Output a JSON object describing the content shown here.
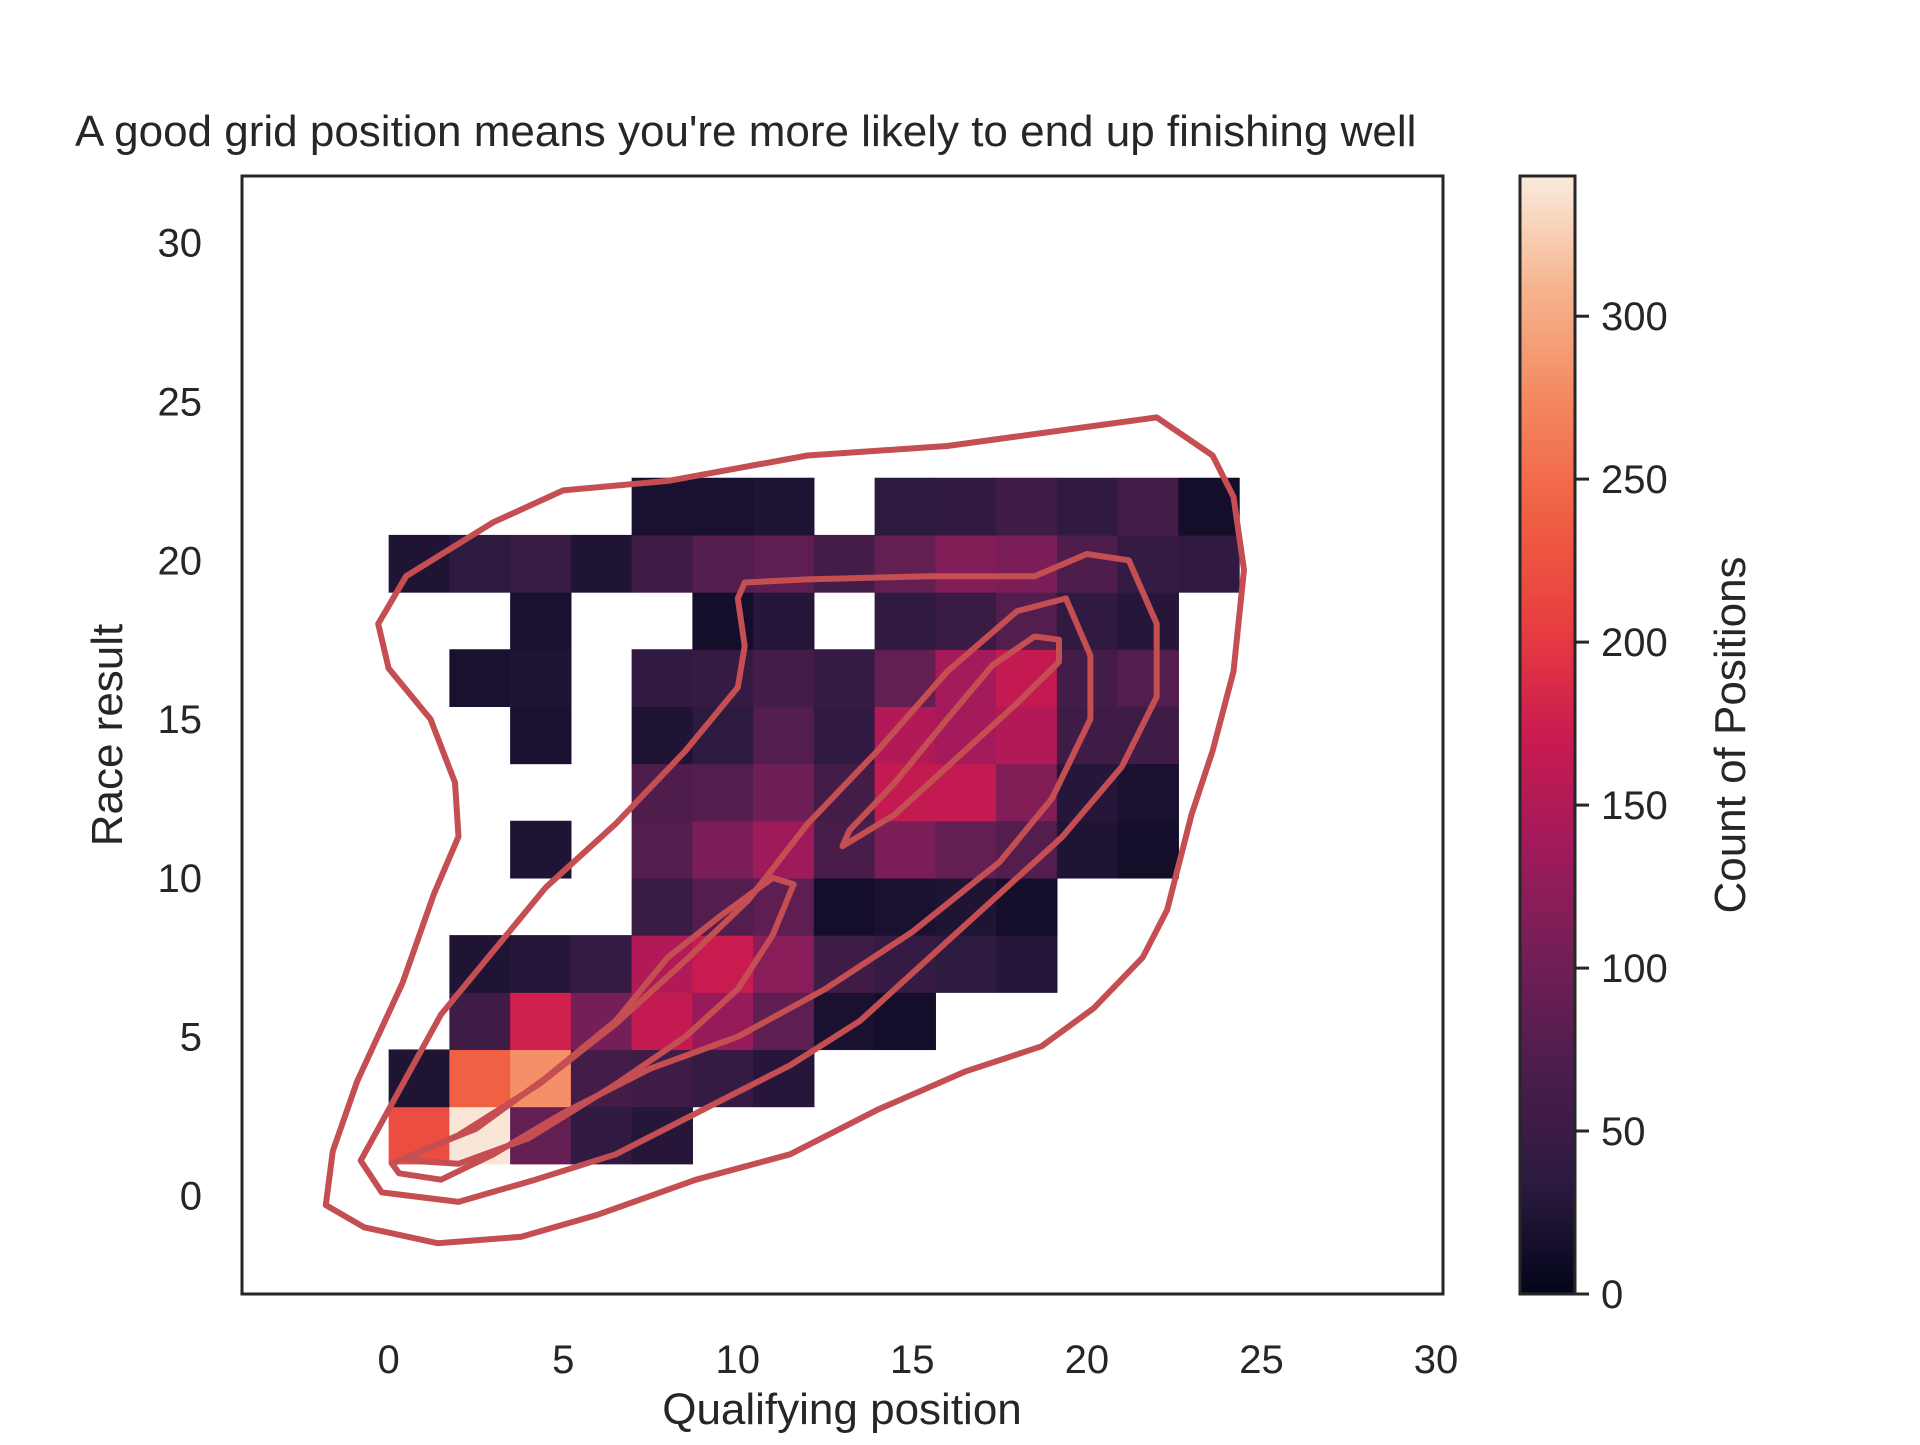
{
  "chart_data": {
    "type": "heatmap",
    "title": "A good grid position means you're more likely to end up finishing well",
    "xlabel": "Qualifying position",
    "ylabel": "Race result",
    "xlim": [
      -4.2,
      30.2
    ],
    "ylim": [
      -3.1,
      32.1
    ],
    "xticks": [
      0,
      5,
      10,
      15,
      20,
      25,
      30
    ],
    "yticks": [
      0,
      5,
      10,
      15,
      20,
      25,
      30
    ],
    "grid": false,
    "bin_width_x": 1.74,
    "bin_height_y": 1.8,
    "bins_x0": [
      0,
      1.74,
      3.48,
      5.22,
      6.96,
      8.7,
      10.44,
      12.18,
      13.92,
      15.66,
      17.4,
      19.14,
      20.88,
      22.62
    ],
    "bins_y0": [
      1,
      2.8,
      4.6,
      6.4,
      8.2,
      10,
      11.8,
      13.6,
      15.4,
      17.2,
      19,
      20.8
    ],
    "counts": [
      [
        220,
        340,
        90,
        40,
        30,
        0,
        0,
        0,
        0,
        0,
        0,
        0,
        0,
        0
      ],
      [
        25,
        240,
        280,
        60,
        55,
        45,
        30,
        0,
        0,
        0,
        0,
        0,
        0,
        0
      ],
      [
        0,
        55,
        175,
        105,
        165,
        130,
        85,
        20,
        15,
        0,
        0,
        0,
        0,
        0
      ],
      [
        0,
        25,
        30,
        45,
        150,
        170,
        120,
        55,
        45,
        35,
        30,
        0,
        0,
        0
      ],
      [
        0,
        0,
        0,
        0,
        50,
        75,
        85,
        15,
        20,
        25,
        15,
        0,
        0,
        0
      ],
      [
        0,
        0,
        25,
        0,
        75,
        110,
        135,
        65,
        110,
        90,
        75,
        25,
        15,
        0
      ],
      [
        0,
        0,
        0,
        0,
        70,
        75,
        100,
        60,
        165,
        165,
        115,
        30,
        20,
        0
      ],
      [
        0,
        0,
        20,
        0,
        25,
        35,
        75,
        40,
        150,
        140,
        150,
        55,
        55,
        0
      ],
      [
        0,
        20,
        25,
        0,
        40,
        45,
        60,
        45,
        90,
        140,
        165,
        60,
        75,
        0
      ],
      [
        0,
        0,
        20,
        0,
        0,
        15,
        30,
        0,
        40,
        50,
        75,
        40,
        30,
        0
      ],
      [
        25,
        35,
        50,
        25,
        55,
        75,
        85,
        60,
        90,
        115,
        110,
        70,
        45,
        40
      ],
      [
        0,
        0,
        0,
        0,
        20,
        20,
        25,
        0,
        35,
        40,
        55,
        40,
        60,
        15
      ]
    ],
    "colorbar": {
      "label": "Count of Positions",
      "min": 0,
      "max": 343,
      "ticks": [
        0,
        50,
        100,
        150,
        200,
        250,
        300
      ],
      "colormap": "rocket",
      "colors": [
        "#03051a",
        "#2b1a3f",
        "#4c1d4b",
        "#711f57",
        "#a11a5b",
        "#cb1b4f",
        "#e83f3f",
        "#f06043",
        "#f4885f",
        "#f6b48e",
        "#faebdd"
      ]
    },
    "kde_contours": {
      "color": "#c44e52",
      "levels": [
        [
          [
            -0.7,
            -1.0
          ],
          [
            1.4,
            -1.5
          ],
          [
            3.8,
            -1.3
          ],
          [
            6.0,
            -0.6
          ],
          [
            8.8,
            0.5
          ],
          [
            11.5,
            1.3
          ],
          [
            14.0,
            2.7
          ],
          [
            16.5,
            3.9
          ],
          [
            18.7,
            4.7
          ],
          [
            20.2,
            5.9
          ],
          [
            21.6,
            7.5
          ],
          [
            22.3,
            9.0
          ],
          [
            23.0,
            12.0
          ],
          [
            23.6,
            14.0
          ],
          [
            24.2,
            16.5
          ],
          [
            24.5,
            19.7
          ],
          [
            24.2,
            22.0
          ],
          [
            23.6,
            23.3
          ],
          [
            22.0,
            24.5
          ],
          [
            20.0,
            24.2
          ],
          [
            16.0,
            23.6
          ],
          [
            12.0,
            23.3
          ],
          [
            8.0,
            22.5
          ],
          [
            5.0,
            22.2
          ],
          [
            3.0,
            21.2
          ],
          [
            0.5,
            19.5
          ],
          [
            -0.3,
            18.0
          ],
          [
            0.0,
            16.6
          ],
          [
            1.2,
            15.0
          ],
          [
            1.9,
            13.0
          ],
          [
            2.0,
            11.3
          ],
          [
            1.3,
            9.5
          ],
          [
            0.4,
            6.7
          ],
          [
            -0.9,
            3.6
          ],
          [
            -1.6,
            1.4
          ],
          [
            -1.8,
            -0.3
          ]
        ],
        [
          [
            -0.2,
            0.1
          ],
          [
            2.0,
            -0.2
          ],
          [
            4.2,
            0.5
          ],
          [
            6.5,
            1.3
          ],
          [
            9.0,
            2.7
          ],
          [
            11.5,
            4.1
          ],
          [
            13.5,
            5.5
          ],
          [
            15.5,
            7.5
          ],
          [
            17.5,
            9.5
          ],
          [
            19.3,
            11.3
          ],
          [
            21.0,
            13.5
          ],
          [
            22.0,
            15.7
          ],
          [
            22.0,
            18.0
          ],
          [
            21.2,
            20.0
          ],
          [
            20.0,
            20.2
          ],
          [
            18.5,
            19.5
          ],
          [
            15.5,
            19.5
          ],
          [
            12.0,
            19.4
          ],
          [
            10.2,
            19.3
          ],
          [
            10.0,
            18.8
          ],
          [
            10.2,
            17.3
          ],
          [
            10.0,
            16.0
          ],
          [
            8.5,
            14.0
          ],
          [
            6.5,
            11.7
          ],
          [
            4.5,
            9.7
          ],
          [
            3.0,
            7.7
          ],
          [
            1.5,
            5.7
          ],
          [
            0.3,
            3.3
          ],
          [
            -0.8,
            1.1
          ]
        ],
        [
          [
            0.3,
            0.7
          ],
          [
            1.5,
            0.5
          ],
          [
            3.0,
            1.3
          ],
          [
            5.0,
            2.6
          ],
          [
            7.5,
            4.0
          ],
          [
            10.0,
            5.0
          ],
          [
            12.5,
            6.5
          ],
          [
            15.0,
            8.3
          ],
          [
            17.5,
            10.5
          ],
          [
            19.0,
            12.5
          ],
          [
            20.1,
            15.0
          ],
          [
            20.1,
            17.0
          ],
          [
            19.4,
            18.8
          ],
          [
            18.0,
            18.4
          ],
          [
            16.0,
            16.5
          ],
          [
            14.0,
            14.0
          ],
          [
            12.0,
            11.7
          ],
          [
            10.3,
            9.3
          ],
          [
            8.5,
            7.4
          ],
          [
            6.5,
            5.4
          ],
          [
            4.3,
            3.5
          ],
          [
            2.0,
            1.9
          ],
          [
            0.1,
            1.0
          ]
        ],
        [
          [
            0.6,
            1.1
          ],
          [
            2.0,
            1.0
          ],
          [
            4.0,
            1.8
          ],
          [
            6.5,
            3.5
          ],
          [
            8.5,
            5.0
          ],
          [
            10.0,
            6.5
          ],
          [
            11.0,
            8.2
          ],
          [
            11.6,
            9.8
          ],
          [
            11.0,
            10.0
          ],
          [
            9.5,
            8.8
          ],
          [
            8.0,
            7.5
          ],
          [
            6.5,
            5.5
          ],
          [
            4.5,
            3.7
          ],
          [
            2.5,
            2.1
          ],
          [
            0.9,
            1.4
          ]
        ],
        [
          [
            13.0,
            11.0
          ],
          [
            14.5,
            12.0
          ],
          [
            16.5,
            14.0
          ],
          [
            18.0,
            15.5
          ],
          [
            19.2,
            16.8
          ],
          [
            19.2,
            17.5
          ],
          [
            18.5,
            17.6
          ],
          [
            17.3,
            16.7
          ],
          [
            16.0,
            15.0
          ],
          [
            14.5,
            13.0
          ],
          [
            13.2,
            11.5
          ]
        ]
      ]
    }
  }
}
